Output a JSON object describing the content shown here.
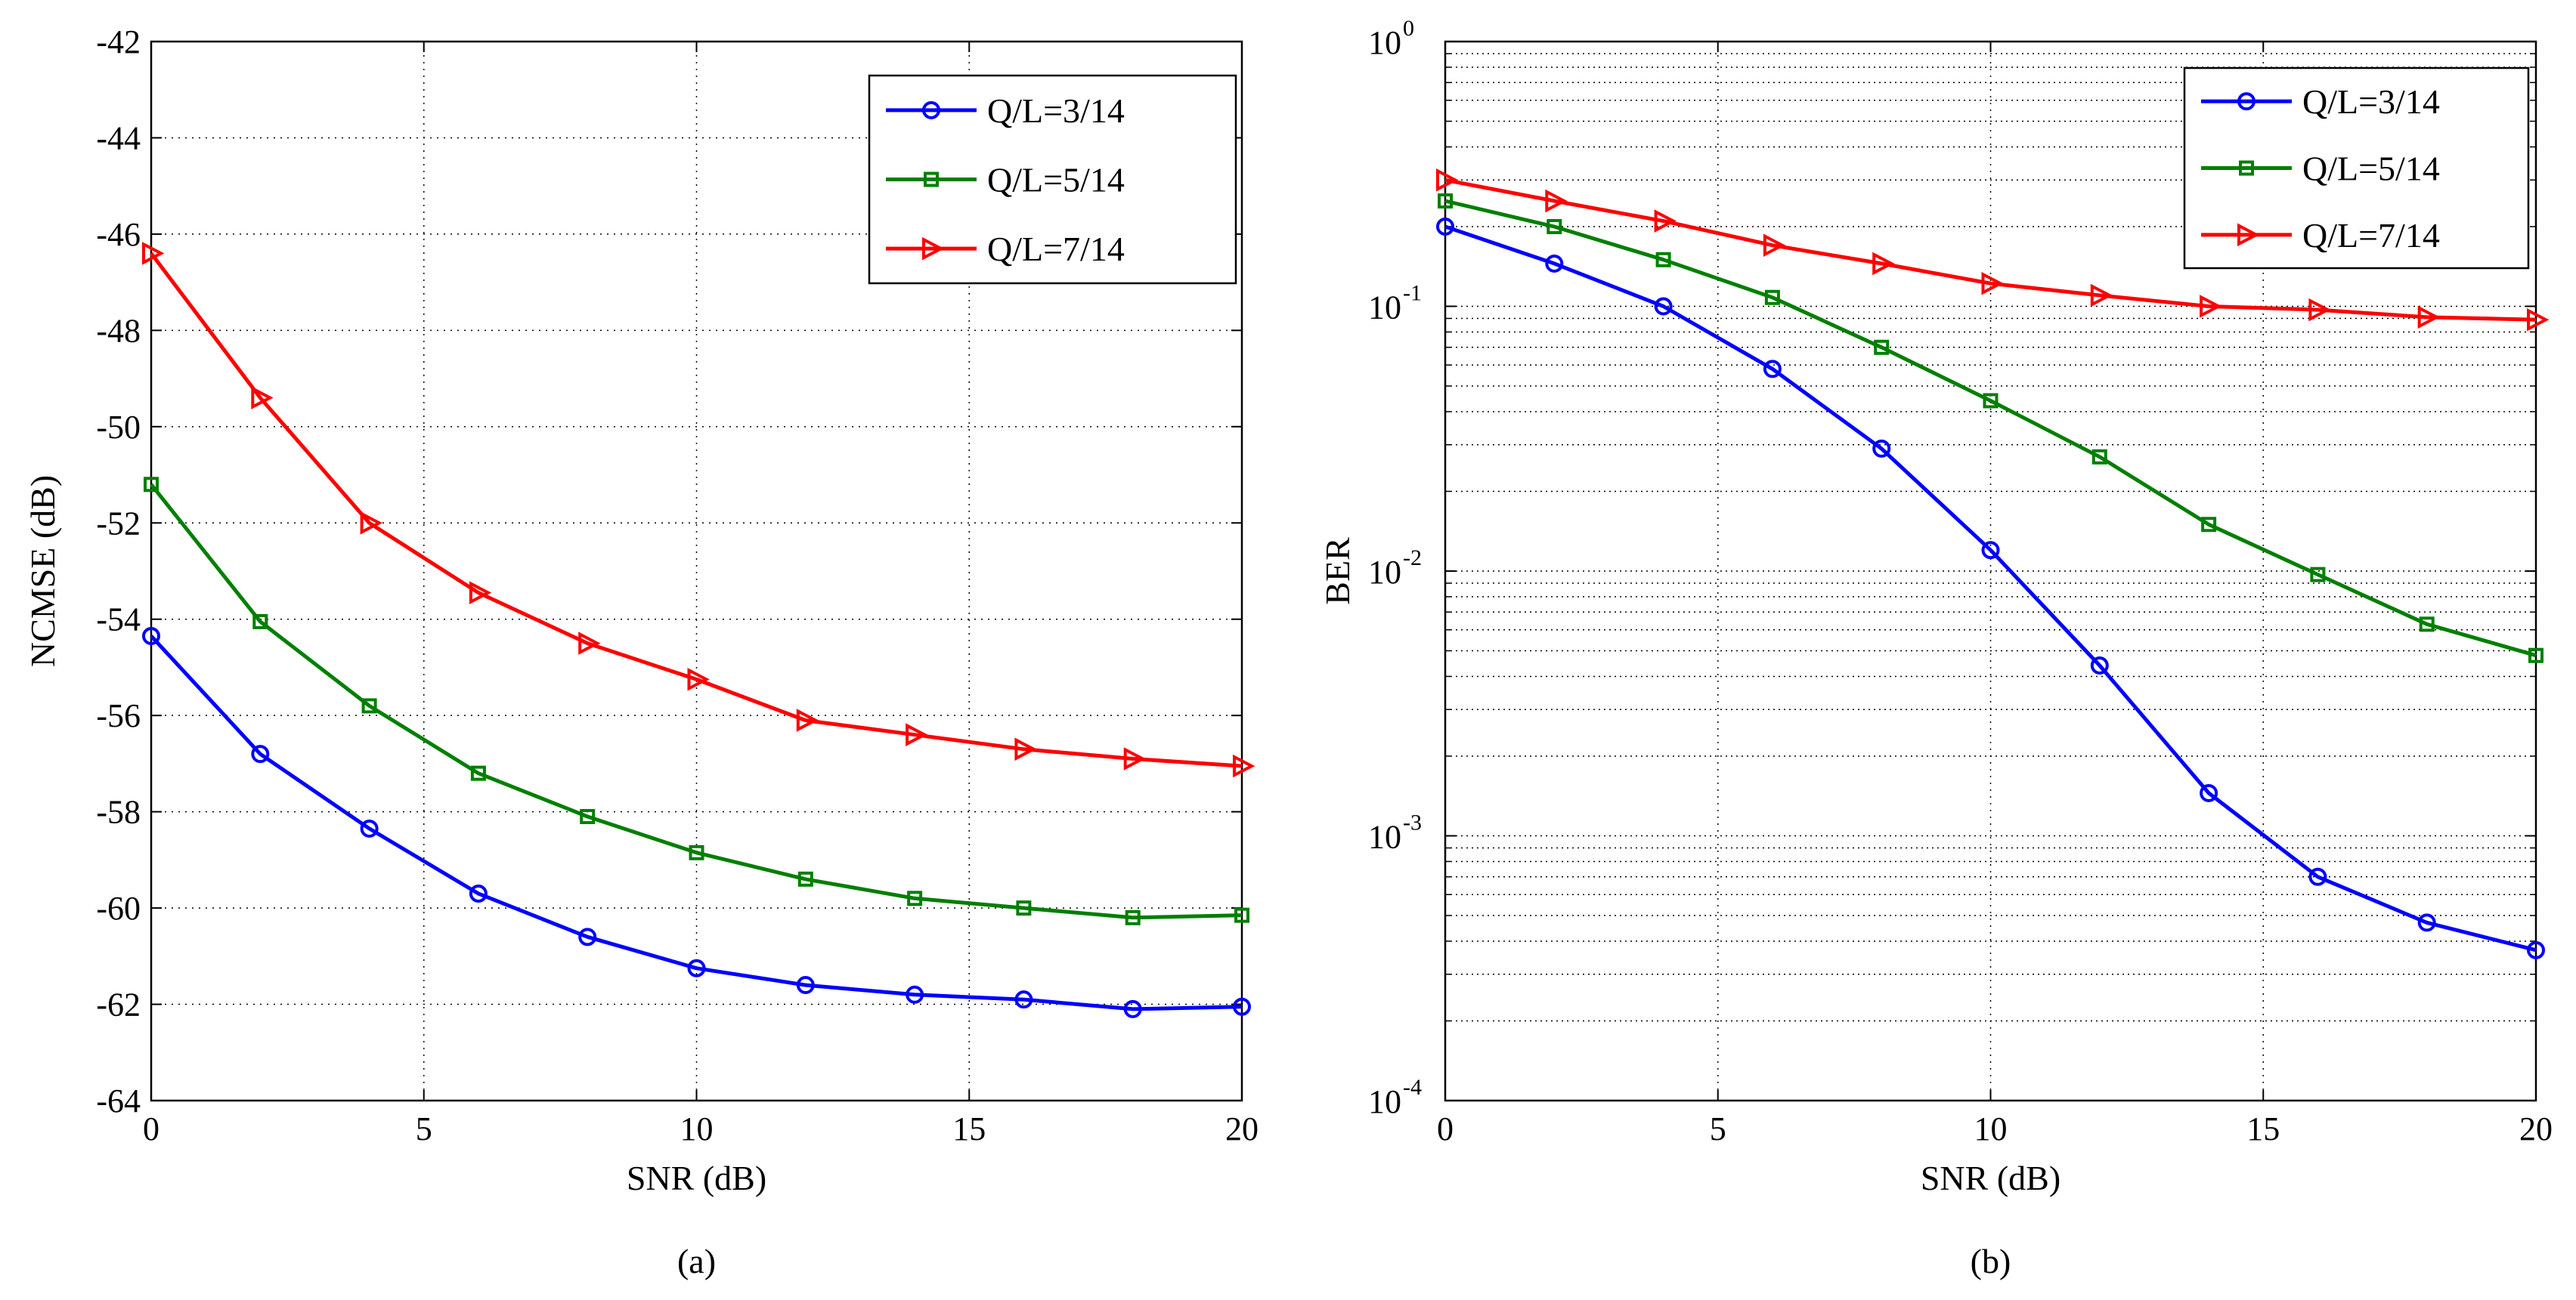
{
  "chart_data": [
    {
      "type": "line",
      "panel_label": "(a)",
      "xlabel": "SNR (dB)",
      "ylabel": "NCMSE (dB)",
      "xlim": [
        0,
        20
      ],
      "ylim": [
        -64,
        -42
      ],
      "yscale": "linear",
      "grid": true,
      "legend_position": "top-right",
      "x_ticks": [
        0,
        5,
        10,
        15,
        20
      ],
      "x_tick_labels": [
        "0",
        "5",
        "10",
        "15",
        "20"
      ],
      "y_ticks": [
        -64,
        -62,
        -60,
        -58,
        -56,
        -54,
        -52,
        -50,
        -48,
        -46,
        -44,
        -42
      ],
      "y_tick_labels": [
        "-64",
        "-62",
        "-60",
        "-58",
        "-56",
        "-54",
        "-52",
        "-50",
        "-48",
        "-46",
        "-44",
        "-42"
      ],
      "x": [
        0,
        2,
        4,
        6,
        8,
        10,
        12,
        14,
        16,
        18,
        20
      ],
      "series": [
        {
          "name": "Q/L=3/14",
          "color": "#0000ff",
          "marker": "circle",
          "values": [
            -54.35,
            -56.8,
            -58.35,
            -59.7,
            -60.6,
            -61.25,
            -61.6,
            -61.8,
            -61.9,
            -62.1,
            -62.05
          ]
        },
        {
          "name": "Q/L=5/14",
          "color": "#007f00",
          "marker": "square",
          "values": [
            -51.2,
            -54.05,
            -55.8,
            -57.2,
            -58.1,
            -58.85,
            -59.4,
            -59.8,
            -60.0,
            -60.2,
            -60.15
          ]
        },
        {
          "name": "Q/L=7/14",
          "color": "#ff0000",
          "marker": "triangle-right",
          "values": [
            -46.4,
            -49.4,
            -52.0,
            -53.45,
            -54.5,
            -55.25,
            -56.1,
            -56.4,
            -56.7,
            -56.9,
            -57.05
          ]
        }
      ]
    },
    {
      "type": "line",
      "panel_label": "(b)",
      "xlabel": "SNR (dB)",
      "ylabel": "BER",
      "xlim": [
        0,
        20
      ],
      "ylim": [
        0.0001,
        1
      ],
      "yscale": "log",
      "grid": true,
      "legend_position": "top-right",
      "x_ticks": [
        0,
        5,
        10,
        15,
        20
      ],
      "x_tick_labels": [
        "0",
        "5",
        "10",
        "15",
        "20"
      ],
      "y_decades": [
        {
          "value": 0.0001,
          "base": "10",
          "exp": "-4"
        },
        {
          "value": 0.001,
          "base": "10",
          "exp": "-3"
        },
        {
          "value": 0.01,
          "base": "10",
          "exp": "-2"
        },
        {
          "value": 0.1,
          "base": "10",
          "exp": "-1"
        },
        {
          "value": 1,
          "base": "10",
          "exp": "0"
        }
      ],
      "x": [
        0,
        2,
        4,
        6,
        8,
        10,
        12,
        14,
        16,
        18,
        20
      ],
      "series": [
        {
          "name": "Q/L=3/14",
          "color": "#0000ff",
          "marker": "circle",
          "values": [
            0.2,
            0.145,
            0.1,
            0.058,
            0.029,
            0.012,
            0.0044,
            0.00145,
            0.0007,
            0.00047,
            0.00037
          ]
        },
        {
          "name": "Q/L=5/14",
          "color": "#007f00",
          "marker": "square",
          "values": [
            0.25,
            0.2,
            0.15,
            0.108,
            0.07,
            0.044,
            0.027,
            0.015,
            0.0097,
            0.0063,
            0.0048
          ]
        },
        {
          "name": "Q/L=7/14",
          "color": "#ff0000",
          "marker": "triangle-right",
          "values": [
            0.3,
            0.25,
            0.21,
            0.17,
            0.145,
            0.122,
            0.11,
            0.1,
            0.097,
            0.091,
            0.089
          ]
        }
      ]
    }
  ]
}
